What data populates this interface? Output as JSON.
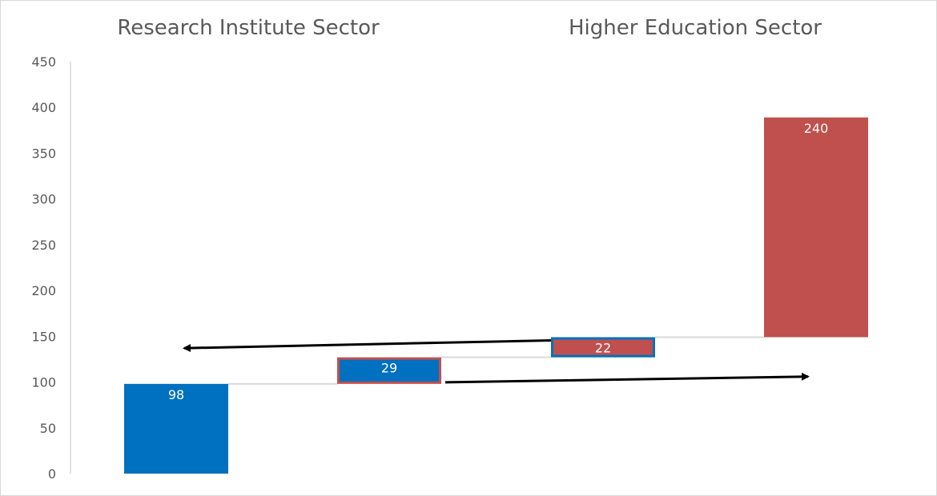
{
  "chart_data": {
    "type": "bar",
    "subtype": "waterfall",
    "section_titles": [
      "Research Institute Sector",
      "Higher Education Sector"
    ],
    "ylim": [
      0,
      450
    ],
    "yticks": [
      0,
      50,
      100,
      150,
      200,
      250,
      300,
      350,
      400,
      450
    ],
    "grid": false,
    "bars": [
      {
        "base": 0,
        "value": 98,
        "label": "98",
        "fill": "#0070C0",
        "outline": null
      },
      {
        "base": 98,
        "value": 29,
        "label": "29",
        "fill": "#0070C0",
        "outline": "#C0504D"
      },
      {
        "base": 127,
        "value": 22,
        "label": "22",
        "fill": "#C0504D",
        "outline": "#0070C0"
      },
      {
        "base": 149,
        "value": 240,
        "label": "240",
        "fill": "#C0504D",
        "outline": null
      }
    ],
    "connectors": [
      {
        "from_bar": 0,
        "to_bar": 1,
        "y": 98
      },
      {
        "from_bar": 1,
        "to_bar": 2,
        "y": 127
      },
      {
        "from_bar": 2,
        "to_bar": 3,
        "y": 149
      }
    ],
    "arrows": [
      {
        "from": {
          "bar": 2,
          "y": 149
        },
        "to": {
          "bar": 0,
          "y": 137
        }
      },
      {
        "from": {
          "bar": 1,
          "y": 98
        },
        "to": {
          "bar": 3,
          "y": 106
        }
      }
    ],
    "colors": {
      "blue": "#0070C0",
      "red": "#C0504D",
      "connector": "#d9d9d9",
      "axis": "#d9d9d9",
      "text": "#595959",
      "arrow": "#000000"
    }
  }
}
